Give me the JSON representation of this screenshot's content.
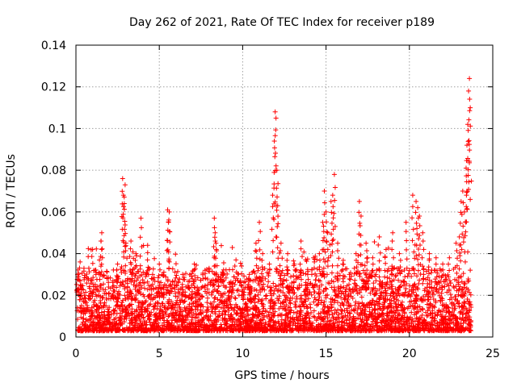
{
  "chart_data": {
    "type": "scatter",
    "title": "Day 262 of 2021, Rate Of TEC Index for receiver p189",
    "xlabel": "GPS time / hours",
    "ylabel": "ROTI / TECUs",
    "xlim": [
      0,
      25
    ],
    "ylim": [
      0,
      0.14
    ],
    "xticks": [
      0,
      5,
      10,
      15,
      20,
      25
    ],
    "xtick_labels": [
      "0",
      "5",
      "10",
      "15",
      "20",
      "25"
    ],
    "yticks": [
      0,
      0.02,
      0.04,
      0.06,
      0.08,
      0.1,
      0.12,
      0.14
    ],
    "ytick_labels": [
      "0",
      "0.02",
      "0.04",
      "0.06",
      "0.08",
      "0.1",
      "0.12",
      "0.14"
    ],
    "grid": true,
    "marker": "plus",
    "color": "#ff0000",
    "series": [
      {
        "x": [
          0.1,
          0.25,
          0.3,
          0.5,
          1.0,
          1.2,
          1.5,
          1.55,
          1.8,
          2.2,
          2.5,
          2.8,
          2.85,
          2.9,
          2.95,
          3.0,
          3.3,
          3.6,
          3.9,
          4.3,
          4.6,
          5.0,
          5.5,
          5.55,
          5.6,
          5.9,
          6.4,
          6.8,
          7.1,
          7.5,
          7.9,
          8.3,
          8.35,
          8.4,
          8.7,
          9.2,
          9.6,
          10.0,
          10.4,
          10.8,
          11.0,
          11.2,
          11.6,
          11.8,
          11.9,
          11.95,
          12.0,
          12.05,
          12.1,
          12.3,
          12.7,
          13.1,
          13.5,
          13.9,
          14.3,
          14.6,
          14.8,
          14.9,
          15.0,
          15.1,
          15.3,
          15.4,
          15.5,
          15.7,
          16.0,
          16.4,
          16.8,
          17.0,
          17.1,
          17.4,
          17.8,
          18.2,
          18.6,
          19.0,
          19.4,
          19.8,
          20.2,
          20.4,
          20.5,
          20.6,
          20.8,
          21.2,
          21.6,
          22.0,
          22.4,
          22.8,
          23.0,
          23.1,
          23.2,
          23.3,
          23.4,
          23.45,
          23.5,
          23.55,
          23.6,
          23.65
        ],
        "y": [
          0.03,
          0.036,
          0.025,
          0.02,
          0.042,
          0.03,
          0.046,
          0.05,
          0.015,
          0.024,
          0.035,
          0.076,
          0.068,
          0.064,
          0.073,
          0.045,
          0.046,
          0.04,
          0.057,
          0.044,
          0.03,
          0.035,
          0.061,
          0.055,
          0.06,
          0.025,
          0.03,
          0.02,
          0.035,
          0.015,
          0.025,
          0.057,
          0.05,
          0.045,
          0.02,
          0.026,
          0.037,
          0.022,
          0.03,
          0.045,
          0.055,
          0.04,
          0.035,
          0.068,
          0.094,
          0.108,
          0.105,
          0.08,
          0.063,
          0.045,
          0.04,
          0.035,
          0.046,
          0.03,
          0.036,
          0.04,
          0.055,
          0.07,
          0.06,
          0.05,
          0.065,
          0.068,
          0.078,
          0.045,
          0.035,
          0.03,
          0.04,
          0.065,
          0.058,
          0.045,
          0.038,
          0.048,
          0.042,
          0.05,
          0.04,
          0.055,
          0.068,
          0.065,
          0.062,
          0.058,
          0.05,
          0.04,
          0.038,
          0.035,
          0.038,
          0.045,
          0.048,
          0.065,
          0.07,
          0.06,
          0.081,
          0.092,
          0.102,
          0.118,
          0.124,
          0.11
        ]
      }
    ]
  }
}
